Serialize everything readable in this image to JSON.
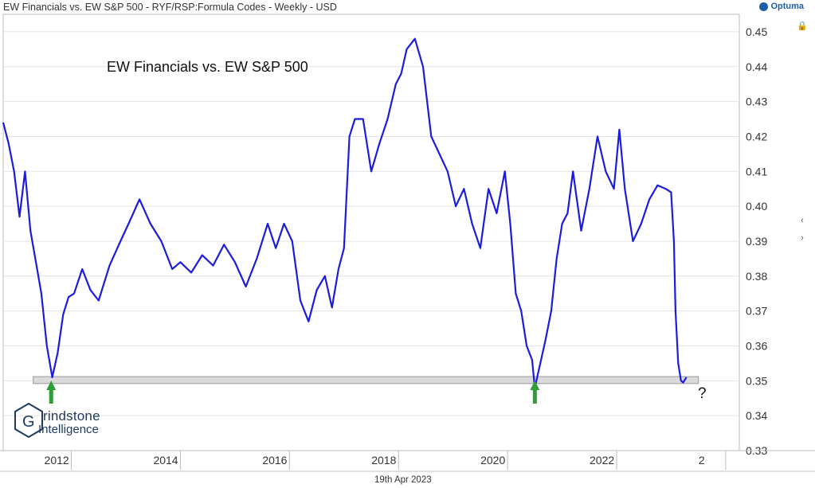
{
  "header": {
    "text": "EW Financials vs. EW S&P 500 - RYF/RSP:Formula Codes - Weekly - USD",
    "brand": "Optuma"
  },
  "watermark": {
    "line1": "rindstone",
    "line2": "Intelligence"
  },
  "annotations": {
    "question_mark": "?"
  },
  "colors": {
    "series": "#1c1cdc",
    "arrow": "#2e9e3a",
    "band": "#dadada",
    "grid": "#e3e3e3"
  },
  "icons": [
    "lock-icon",
    "chevron-left-icon",
    "chevron-right-icon"
  ],
  "chart_data": {
    "type": "line",
    "title": "EW Financials vs. EW S&P 500",
    "date_label": "19th Apr 2023",
    "x_ticks": [
      "2012",
      "2014",
      "2016",
      "2018",
      "2020",
      "2022",
      "2"
    ],
    "y_ticks": [
      "0.45",
      "0.44",
      "0.43",
      "0.42",
      "0.41",
      "0.40",
      "0.39",
      "0.38",
      "0.37",
      "0.36",
      "0.35",
      "0.34",
      "0.33"
    ],
    "ylim": [
      0.33,
      0.455
    ],
    "xlim": [
      2010.75,
      2024.25
    ],
    "support_band": {
      "from_x": 2011.3,
      "to_x": 2023.5,
      "y_low": 0.3492,
      "y_high": 0.3512
    },
    "arrows_x": [
      2011.63,
      2020.5
    ],
    "grid": true,
    "series": [
      {
        "x": [
          2010.75,
          2010.85,
          2010.95,
          2011.05,
          2011.15,
          2011.25,
          2011.35,
          2011.45,
          2011.55,
          2011.65,
          2011.75,
          2011.85,
          2011.95,
          2012.05,
          2012.2,
          2012.35,
          2012.5,
          2012.7,
          2012.9,
          2013.05,
          2013.25,
          2013.45,
          2013.65,
          2013.85,
          2014.0,
          2014.2,
          2014.4,
          2014.6,
          2014.8,
          2015.0,
          2015.2,
          2015.4,
          2015.6,
          2015.75,
          2015.9,
          2016.05,
          2016.2,
          2016.35,
          2016.5,
          2016.65,
          2016.78,
          2016.9,
          2017.0,
          2017.1,
          2017.2,
          2017.35,
          2017.5,
          2017.65,
          2017.8,
          2017.95,
          2018.05,
          2018.15,
          2018.3,
          2018.45,
          2018.6,
          2018.75,
          2018.9,
          2019.05,
          2019.2,
          2019.35,
          2019.5,
          2019.65,
          2019.8,
          2019.95,
          2020.05,
          2020.15,
          2020.25,
          2020.35,
          2020.45,
          2020.5,
          2020.6,
          2020.7,
          2020.8,
          2020.9,
          2021.0,
          2021.1,
          2021.2,
          2021.35,
          2021.5,
          2021.65,
          2021.8,
          2021.95,
          2022.05,
          2022.15,
          2022.3,
          2022.45,
          2022.6,
          2022.75,
          2022.9,
          2023.0,
          2023.05,
          2023.08,
          2023.13,
          2023.18,
          2023.22,
          2023.28
        ],
        "y": [
          0.424,
          0.418,
          0.41,
          0.397,
          0.41,
          0.393,
          0.384,
          0.375,
          0.36,
          0.351,
          0.358,
          0.369,
          0.374,
          0.375,
          0.382,
          0.376,
          0.373,
          0.383,
          0.39,
          0.395,
          0.402,
          0.395,
          0.39,
          0.382,
          0.384,
          0.381,
          0.386,
          0.383,
          0.389,
          0.384,
          0.377,
          0.385,
          0.395,
          0.388,
          0.395,
          0.39,
          0.373,
          0.367,
          0.376,
          0.38,
          0.371,
          0.382,
          0.388,
          0.42,
          0.425,
          0.425,
          0.41,
          0.418,
          0.425,
          0.435,
          0.438,
          0.445,
          0.448,
          0.44,
          0.42,
          0.415,
          0.41,
          0.4,
          0.405,
          0.395,
          0.388,
          0.405,
          0.398,
          0.41,
          0.395,
          0.375,
          0.37,
          0.36,
          0.356,
          0.348,
          0.355,
          0.362,
          0.37,
          0.385,
          0.395,
          0.398,
          0.41,
          0.393,
          0.405,
          0.42,
          0.41,
          0.405,
          0.422,
          0.405,
          0.39,
          0.395,
          0.402,
          0.406,
          0.405,
          0.404,
          0.39,
          0.37,
          0.355,
          0.35,
          0.3495,
          0.351
        ]
      }
    ]
  }
}
